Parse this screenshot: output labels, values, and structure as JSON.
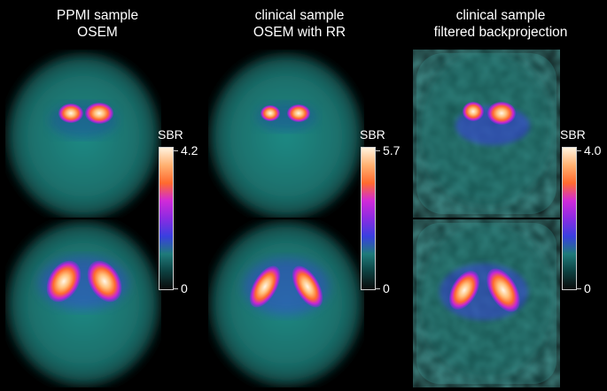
{
  "columns": [
    {
      "title_line1": "PPMI sample",
      "title_line2": "OSEM",
      "colorbar": {
        "label": "SBR",
        "max": "4.2",
        "min": "0"
      }
    },
    {
      "title_line1": "clinical sample",
      "title_line2": "OSEM with RR",
      "colorbar": {
        "label": "SBR",
        "max": "5.7",
        "min": "0"
      }
    },
    {
      "title_line1": "clinical sample",
      "title_line2": "filtered backprojection",
      "colorbar": {
        "label": "SBR",
        "max": "4.0",
        "min": "0"
      }
    }
  ],
  "colormap": [
    "#0b0b0b",
    "#0c3f3f",
    "#1f7b7b",
    "#3a3fe0",
    "#8a2be2",
    "#d12ad8",
    "#ff6a2e",
    "#ffb070",
    "#fff3df"
  ]
}
